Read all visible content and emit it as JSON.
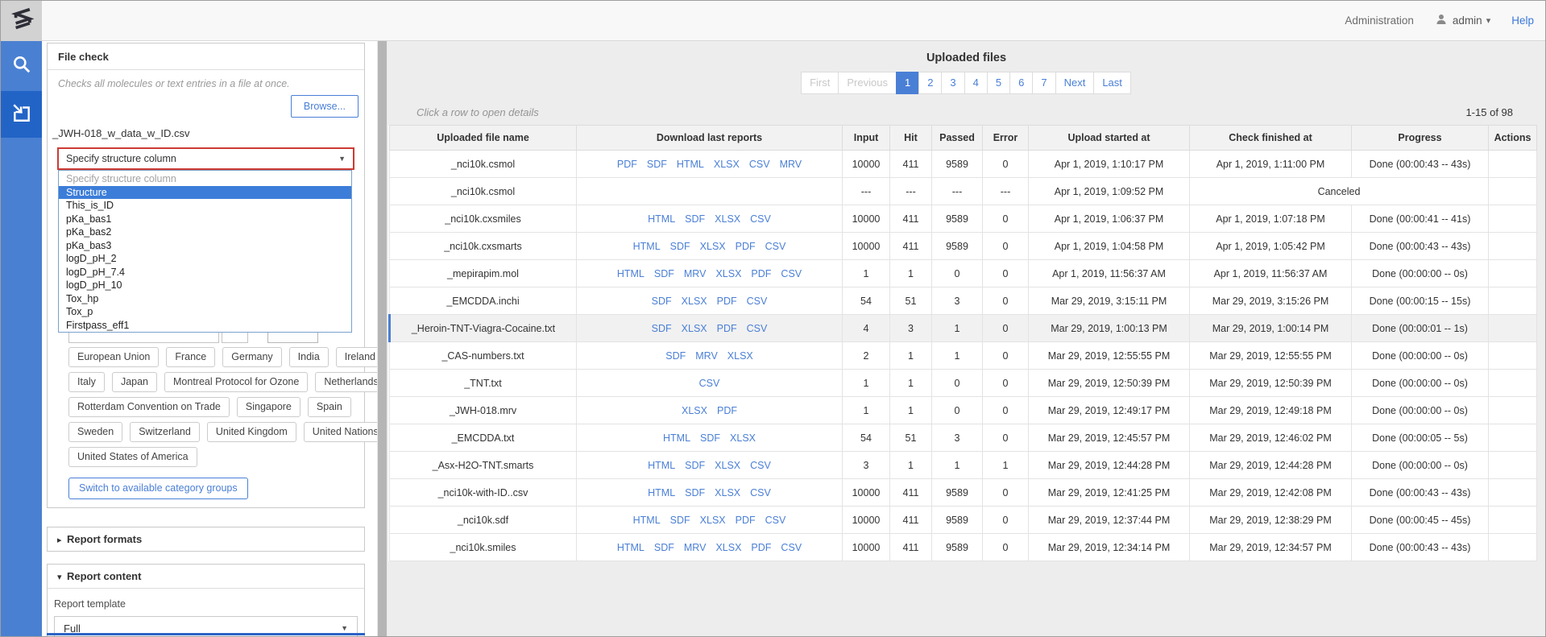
{
  "colors": {
    "accent_blue": "#3c7dd9",
    "link_blue": "#4a7fd6",
    "sidebar_blue": "#4a80d2",
    "sidebar_active_blue": "#2264c6",
    "error_red": "#cc3b33",
    "header_gray": "#f2f2f2",
    "main_background": "#ededed",
    "topbar_background": "#f8f8f8"
  },
  "icons": {
    "logo": "chemaxon-zigzag-s",
    "search": "magnifier",
    "file_check": "arrow-into-box",
    "user": "person",
    "caret_down": "▾",
    "select_caret": "▼",
    "collapsed_arrow": "▸",
    "expanded_arrow": "▾"
  },
  "topbar": {
    "administration": "Administration",
    "username": "admin",
    "help": "Help"
  },
  "file_check": {
    "title": "File check",
    "hint": "Checks all molecules or text entries in a file at once.",
    "browse_label": "Browse...",
    "file_name": "_JWH-018_w_data_w_ID.csv",
    "structure_select": {
      "value": "Specify structure column",
      "selected_option": "Structure",
      "options": [
        "Specify structure column",
        "Structure",
        "This_is_ID",
        "pKa_bas1",
        "pKa_bas2",
        "pKa_bas3",
        "logD_pH_2",
        "logD_pH_7.4",
        "logD_pH_10",
        "Tox_hp",
        "Tox_p",
        "Firstpass_eff1"
      ]
    },
    "categories": [
      [
        "European Union",
        "France",
        "Germany",
        "India",
        "Ireland"
      ],
      [
        "Italy",
        "Japan",
        "Montreal Protocol for Ozone",
        "Netherlands"
      ],
      [
        "Rotterdam Convention on Trade",
        "Singapore",
        "Spain"
      ],
      [
        "Sweden",
        "Switzerland",
        "United Kingdom",
        "United Nations"
      ],
      [
        "United States of America"
      ]
    ],
    "switch_label": "Switch to available category groups",
    "report_formats_label": "Report formats",
    "report_content": {
      "label": "Report content",
      "template_label": "Report template",
      "template_value": "Full"
    }
  },
  "main": {
    "title": "Uploaded files",
    "hint": "Click a row to open details",
    "range": "1-15 of 98",
    "pagination": [
      {
        "label": "First",
        "state": "disabled"
      },
      {
        "label": "Previous",
        "state": "disabled"
      },
      {
        "label": "1",
        "state": "active"
      },
      {
        "label": "2",
        "state": "link"
      },
      {
        "label": "3",
        "state": "link"
      },
      {
        "label": "4",
        "state": "link"
      },
      {
        "label": "5",
        "state": "link"
      },
      {
        "label": "6",
        "state": "link"
      },
      {
        "label": "7",
        "state": "link"
      },
      {
        "label": "Next",
        "state": "link"
      },
      {
        "label": "Last",
        "state": "link"
      }
    ],
    "table": {
      "headers": [
        "Uploaded file name",
        "Download last reports",
        "Input",
        "Hit",
        "Passed",
        "Error",
        "Upload started at",
        "Check finished at",
        "Progress",
        "Actions"
      ],
      "rows": [
        {
          "name": "_nci10k.csmol",
          "reports": [
            "PDF",
            "SDF",
            "HTML",
            "XLSX",
            "CSV",
            "MRV"
          ],
          "input": "10000",
          "hit": "411",
          "passed": "9589",
          "error": "0",
          "started": "Apr 1, 2019, 1:10:17 PM",
          "finished": "Apr 1, 2019, 1:11:00 PM",
          "progress": "Done (00:00:43 -- 43s)",
          "canceled": false,
          "selected": false
        },
        {
          "name": "_nci10k.csmol",
          "reports": [],
          "input": "---",
          "hit": "---",
          "passed": "---",
          "error": "---",
          "started": "Apr 1, 2019, 1:09:52 PM",
          "finished": "Canceled",
          "progress": "",
          "canceled": true,
          "selected": false
        },
        {
          "name": "_nci10k.cxsmiles",
          "reports": [
            "HTML",
            "SDF",
            "XLSX",
            "CSV"
          ],
          "input": "10000",
          "hit": "411",
          "passed": "9589",
          "error": "0",
          "started": "Apr 1, 2019, 1:06:37 PM",
          "finished": "Apr 1, 2019, 1:07:18 PM",
          "progress": "Done (00:00:41 -- 41s)",
          "canceled": false,
          "selected": false
        },
        {
          "name": "_nci10k.cxsmarts",
          "reports": [
            "HTML",
            "SDF",
            "XLSX",
            "PDF",
            "CSV"
          ],
          "input": "10000",
          "hit": "411",
          "passed": "9589",
          "error": "0",
          "started": "Apr 1, 2019, 1:04:58 PM",
          "finished": "Apr 1, 2019, 1:05:42 PM",
          "progress": "Done (00:00:43 -- 43s)",
          "canceled": false,
          "selected": false
        },
        {
          "name": "_mepirapim.mol",
          "reports": [
            "HTML",
            "SDF",
            "MRV",
            "XLSX",
            "PDF",
            "CSV"
          ],
          "input": "1",
          "hit": "1",
          "passed": "0",
          "error": "0",
          "started": "Apr 1, 2019, 11:56:37 AM",
          "finished": "Apr 1, 2019, 11:56:37 AM",
          "progress": "Done (00:00:00 -- 0s)",
          "canceled": false,
          "selected": false
        },
        {
          "name": "_EMCDDA.inchi",
          "reports": [
            "SDF",
            "XLSX",
            "PDF",
            "CSV"
          ],
          "input": "54",
          "hit": "51",
          "passed": "3",
          "error": "0",
          "started": "Mar 29, 2019, 3:15:11 PM",
          "finished": "Mar 29, 2019, 3:15:26 PM",
          "progress": "Done (00:00:15 -- 15s)",
          "canceled": false,
          "selected": false
        },
        {
          "name": "_Heroin-TNT-Viagra-Cocaine.txt",
          "reports": [
            "SDF",
            "XLSX",
            "PDF",
            "CSV"
          ],
          "input": "4",
          "hit": "3",
          "passed": "1",
          "error": "0",
          "started": "Mar 29, 2019, 1:00:13 PM",
          "finished": "Mar 29, 2019, 1:00:14 PM",
          "progress": "Done (00:00:01 -- 1s)",
          "canceled": false,
          "selected": true
        },
        {
          "name": "_CAS-numbers.txt",
          "reports": [
            "SDF",
            "MRV",
            "XLSX"
          ],
          "input": "2",
          "hit": "1",
          "passed": "1",
          "error": "0",
          "started": "Mar 29, 2019, 12:55:55 PM",
          "finished": "Mar 29, 2019, 12:55:55 PM",
          "progress": "Done (00:00:00 -- 0s)",
          "canceled": false,
          "selected": false
        },
        {
          "name": "_TNT.txt",
          "reports": [
            "CSV"
          ],
          "input": "1",
          "hit": "1",
          "passed": "0",
          "error": "0",
          "started": "Mar 29, 2019, 12:50:39 PM",
          "finished": "Mar 29, 2019, 12:50:39 PM",
          "progress": "Done (00:00:00 -- 0s)",
          "canceled": false,
          "selected": false
        },
        {
          "name": "_JWH-018.mrv",
          "reports": [
            "XLSX",
            "PDF"
          ],
          "input": "1",
          "hit": "1",
          "passed": "0",
          "error": "0",
          "started": "Mar 29, 2019, 12:49:17 PM",
          "finished": "Mar 29, 2019, 12:49:18 PM",
          "progress": "Done (00:00:00 -- 0s)",
          "canceled": false,
          "selected": false
        },
        {
          "name": "_EMCDDA.txt",
          "reports": [
            "HTML",
            "SDF",
            "XLSX"
          ],
          "input": "54",
          "hit": "51",
          "passed": "3",
          "error": "0",
          "started": "Mar 29, 2019, 12:45:57 PM",
          "finished": "Mar 29, 2019, 12:46:02 PM",
          "progress": "Done (00:00:05 -- 5s)",
          "canceled": false,
          "selected": false
        },
        {
          "name": "_Asx-H2O-TNT.smarts",
          "reports": [
            "HTML",
            "SDF",
            "XLSX",
            "CSV"
          ],
          "input": "3",
          "hit": "1",
          "passed": "1",
          "error": "1",
          "started": "Mar 29, 2019, 12:44:28 PM",
          "finished": "Mar 29, 2019, 12:44:28 PM",
          "progress": "Done (00:00:00 -- 0s)",
          "canceled": false,
          "selected": false
        },
        {
          "name": "_nci10k-with-ID..csv",
          "reports": [
            "HTML",
            "SDF",
            "XLSX",
            "CSV"
          ],
          "input": "10000",
          "hit": "411",
          "passed": "9589",
          "error": "0",
          "started": "Mar 29, 2019, 12:41:25 PM",
          "finished": "Mar 29, 2019, 12:42:08 PM",
          "progress": "Done (00:00:43 -- 43s)",
          "canceled": false,
          "selected": false
        },
        {
          "name": "_nci10k.sdf",
          "reports": [
            "HTML",
            "SDF",
            "XLSX",
            "PDF",
            "CSV"
          ],
          "input": "10000",
          "hit": "411",
          "passed": "9589",
          "error": "0",
          "started": "Mar 29, 2019, 12:37:44 PM",
          "finished": "Mar 29, 2019, 12:38:29 PM",
          "progress": "Done (00:00:45 -- 45s)",
          "canceled": false,
          "selected": false
        },
        {
          "name": "_nci10k.smiles",
          "reports": [
            "HTML",
            "SDF",
            "MRV",
            "XLSX",
            "PDF",
            "CSV"
          ],
          "input": "10000",
          "hit": "411",
          "passed": "9589",
          "error": "0",
          "started": "Mar 29, 2019, 12:34:14 PM",
          "finished": "Mar 29, 2019, 12:34:57 PM",
          "progress": "Done (00:00:43 -- 43s)",
          "canceled": false,
          "selected": false
        }
      ]
    }
  }
}
